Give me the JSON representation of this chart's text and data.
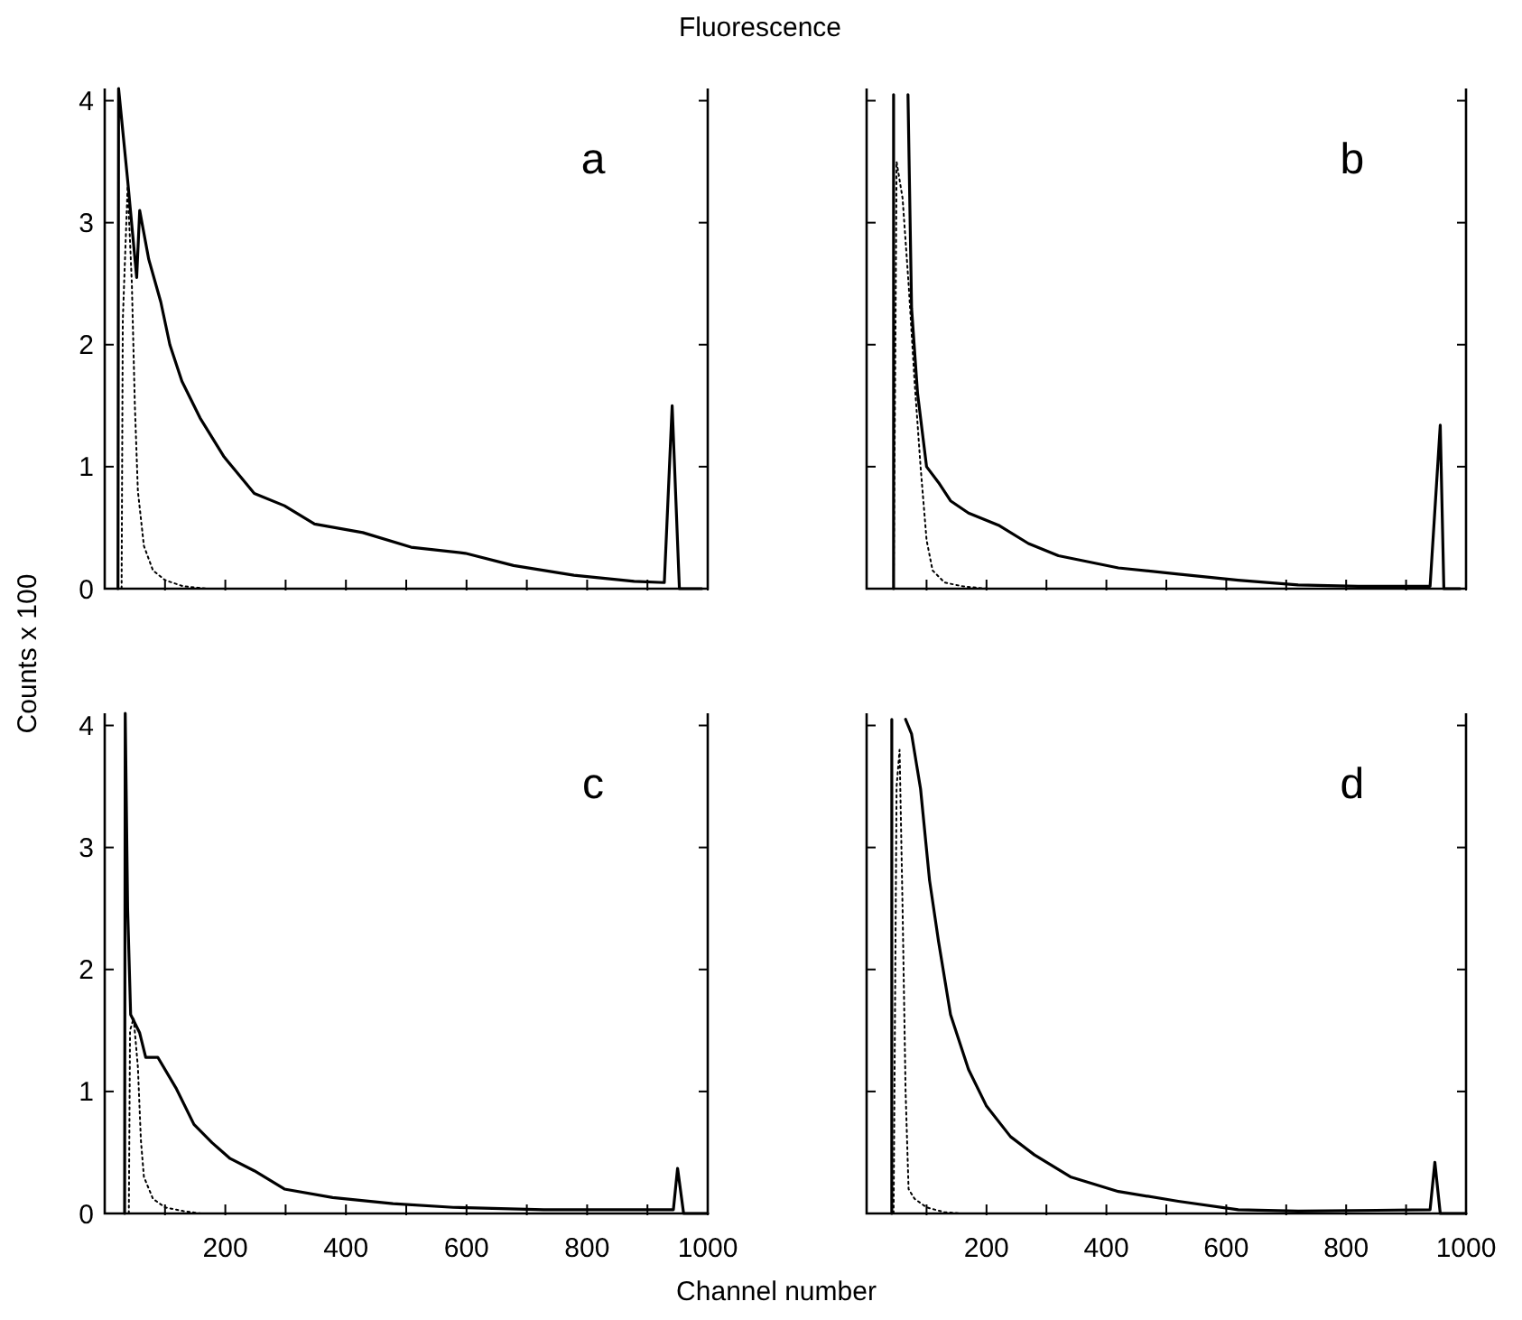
{
  "chart_data": [
    {
      "type": "line",
      "title": "Fluorescence",
      "ylabel": "Counts x 100",
      "annotations": [
        "a"
      ],
      "xlim": [
        0,
        1000
      ],
      "ylim": [
        0,
        4.1
      ],
      "yticks": [
        0,
        1,
        2,
        3,
        4
      ],
      "xticks": [
        {
          "value": 100,
          "label": null
        },
        {
          "value": 200,
          "label": null
        },
        {
          "value": 300,
          "label": null
        },
        {
          "value": 400,
          "label": null
        },
        {
          "value": 500,
          "label": null
        },
        {
          "value": 600,
          "label": null
        },
        {
          "value": 700,
          "label": null
        },
        {
          "value": 800,
          "label": null
        },
        {
          "value": 900,
          "label": null
        },
        {
          "value": 1000,
          "label": null
        }
      ],
      "tick_labels": "y",
      "grid": false,
      "series": [
        {
          "color": "#000000",
          "line_style": "solid",
          "x": [
            22,
            23,
            38,
            53,
            58,
            73,
            93,
            108,
            128,
            158,
            198,
            248,
            298,
            348,
            428,
            508,
            598,
            678,
            778,
            878,
            928,
            941,
            953,
            990
          ],
          "values": [
            0,
            4.1,
            3.35,
            2.55,
            3.1,
            2.7,
            2.35,
            2.0,
            1.7,
            1.4,
            1.08,
            0.78,
            0.68,
            0.53,
            0.46,
            0.34,
            0.29,
            0.19,
            0.11,
            0.06,
            0.05,
            1.5,
            0,
            0
          ]
        },
        {
          "color": "#000000",
          "line_style": "dotted",
          "x": [
            28,
            30,
            38,
            45,
            50,
            55,
            65,
            80,
            100,
            130,
            170,
            990
          ],
          "values": [
            0,
            2.2,
            3.3,
            2.5,
            1.5,
            0.8,
            0.35,
            0.15,
            0.07,
            0.02,
            0,
            0
          ]
        }
      ]
    },
    {
      "type": "line",
      "annotations": [
        "b"
      ],
      "xlim": [
        0,
        1000
      ],
      "ylim": [
        0,
        4.1
      ],
      "yticks": [
        {
          "value": 0,
          "label": null
        },
        {
          "value": 1,
          "label": null
        },
        {
          "value": 2,
          "label": null
        },
        {
          "value": 3,
          "label": null
        },
        {
          "value": 4,
          "label": null
        }
      ],
      "xticks": [
        {
          "value": 100,
          "label": null
        },
        {
          "value": 200,
          "label": null
        },
        {
          "value": 300,
          "label": null
        },
        {
          "value": 400,
          "label": null
        },
        {
          "value": 500,
          "label": null
        },
        {
          "value": 600,
          "label": null
        },
        {
          "value": 700,
          "label": null
        },
        {
          "value": 800,
          "label": null
        },
        {
          "value": 900,
          "label": null
        },
        {
          "value": 1000,
          "label": null
        }
      ],
      "tick_labels": false,
      "grid": false,
      "series": [
        {
          "color": "#000000",
          "line_style": "solid",
          "x": [
            45,
            45,
            56,
            69,
            75,
            85,
            100,
            120,
            140,
            170,
            220,
            270,
            320,
            420,
            520,
            620,
            720,
            820,
            940,
            957,
            963,
            990
          ],
          "values": [
            0,
            4.05,
            null,
            4.05,
            2.3,
            1.6,
            1.0,
            0.87,
            0.72,
            0.62,
            0.52,
            0.37,
            0.27,
            0.17,
            0.12,
            0.07,
            0.03,
            0.02,
            0.02,
            1.34,
            0,
            0
          ]
        },
        {
          "color": "#000000",
          "line_style": "dotted",
          "x": [
            45,
            48,
            50,
            60,
            70,
            80,
            90,
            100,
            110,
            130,
            160,
            200,
            990
          ],
          "values": [
            0,
            2.0,
            3.5,
            3.2,
            2.5,
            1.7,
            1.0,
            0.4,
            0.15,
            0.05,
            0.02,
            0,
            0
          ]
        }
      ]
    },
    {
      "type": "line",
      "xlabel": "Channel number",
      "annotations": [
        "c"
      ],
      "xlim": [
        0,
        1000
      ],
      "ylim": [
        0,
        4.1
      ],
      "yticks": [
        0,
        1,
        2,
        3,
        4
      ],
      "xticks": [
        {
          "value": 100,
          "label": null
        },
        200,
        {
          "value": 300,
          "label": null
        },
        400,
        {
          "value": 500,
          "label": null
        },
        600,
        {
          "value": 700,
          "label": null
        },
        800,
        {
          "value": 900,
          "label": null
        },
        1000
      ],
      "grid": false,
      "series": [
        {
          "color": "#000000",
          "line_style": "solid",
          "x": [
            33,
            34,
            38,
            43,
            58,
            68,
            88,
            118,
            148,
            178,
            208,
            248,
            298,
            378,
            478,
            578,
            728,
            943,
            950,
            960,
            1000
          ],
          "values": [
            0,
            4.1,
            2.5,
            1.63,
            1.48,
            1.28,
            1.28,
            1.03,
            0.73,
            0.58,
            0.45,
            0.35,
            0.2,
            0.13,
            0.08,
            0.05,
            0.03,
            0.03,
            0.37,
            0,
            0
          ]
        },
        {
          "color": "#000000",
          "line_style": "dotted",
          "x": [
            40,
            42,
            48,
            55,
            60,
            65,
            80,
            100,
            130,
            160,
            990
          ],
          "values": [
            0,
            1.5,
            1.6,
            1.2,
            0.6,
            0.3,
            0.12,
            0.05,
            0.02,
            0,
            0
          ]
        }
      ]
    },
    {
      "type": "line",
      "annotations": [
        "d"
      ],
      "xlim": [
        0,
        1000
      ],
      "ylim": [
        0,
        4.1
      ],
      "yticks": [
        {
          "value": 0,
          "label": null
        },
        {
          "value": 1,
          "label": null
        },
        {
          "value": 2,
          "label": null
        },
        {
          "value": 3,
          "label": null
        },
        {
          "value": 4,
          "label": null
        }
      ],
      "xticks": [
        {
          "value": 100,
          "label": null
        },
        200,
        {
          "value": 300,
          "label": null
        },
        400,
        {
          "value": 500,
          "label": null
        },
        600,
        {
          "value": 700,
          "label": null
        },
        800,
        {
          "value": 900,
          "label": null
        },
        1000
      ],
      "tick_labels": "x",
      "grid": false,
      "series": [
        {
          "color": "#000000",
          "line_style": "solid",
          "x": [
            42,
            42,
            53,
            65,
            75,
            90,
            105,
            120,
            140,
            170,
            200,
            240,
            280,
            340,
            420,
            520,
            620,
            720,
            940,
            948,
            957,
            1000
          ],
          "values": [
            0,
            4.05,
            null,
            4.05,
            3.93,
            3.48,
            2.73,
            2.23,
            1.63,
            1.18,
            0.88,
            0.63,
            0.48,
            0.3,
            0.18,
            0.1,
            0.03,
            0.02,
            0.03,
            0.42,
            0,
            0
          ]
        },
        {
          "color": "#000000",
          "line_style": "dotted",
          "x": [
            45,
            50,
            55,
            60,
            65,
            70,
            80,
            100,
            130,
            160,
            990
          ],
          "values": [
            0,
            3.5,
            3.8,
            2.5,
            1.0,
            0.2,
            0.12,
            0.05,
            0.01,
            0,
            0
          ]
        }
      ]
    }
  ]
}
